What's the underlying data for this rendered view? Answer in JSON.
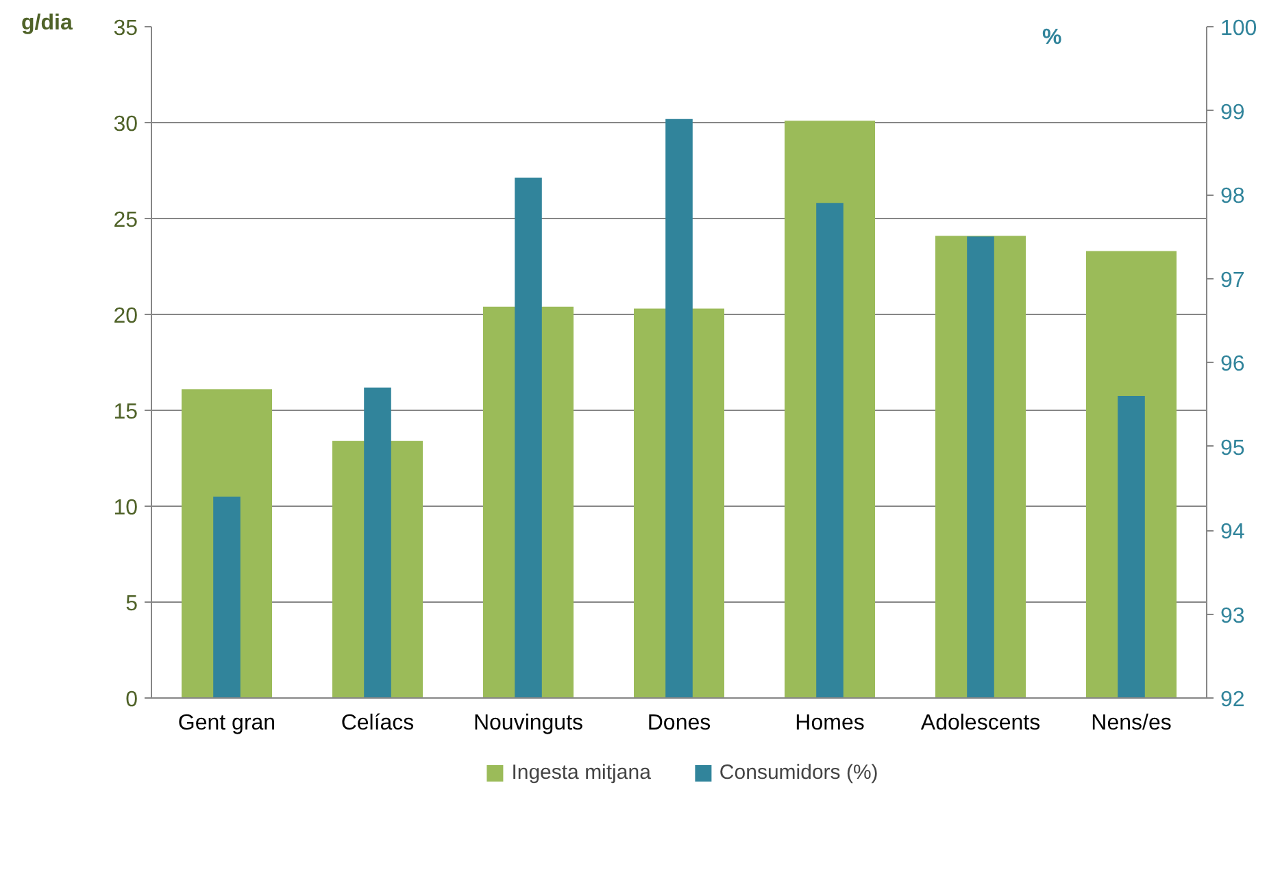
{
  "chart_data": {
    "type": "bar",
    "ylabel": "g/dia",
    "y2label": "%",
    "categories": [
      "Gent gran",
      "Celíacs",
      "Nouvinguts",
      "Dones",
      "Homes",
      "Adolescents",
      "Nens/es"
    ],
    "series": [
      {
        "name": "Ingesta mitjana",
        "color": "#9bbb59",
        "values": [
          16.1,
          13.4,
          20.4,
          20.3,
          30.1,
          24.1,
          23.3
        ]
      },
      {
        "name": "Consumidors (%)",
        "color": "#31849b",
        "axis": "y2",
        "values": [
          94.4,
          95.7,
          98.2,
          98.9,
          97.9,
          97.5,
          95.6
        ]
      }
    ],
    "ylim": [
      0,
      35
    ],
    "yticks": [
      0,
      5,
      10,
      15,
      20,
      25,
      30,
      35
    ],
    "y2lim": [
      92,
      100
    ],
    "y2ticks": [
      92,
      93,
      94,
      95,
      96,
      97,
      98,
      99,
      100
    ],
    "grid": "y",
    "legend": "bottom"
  }
}
